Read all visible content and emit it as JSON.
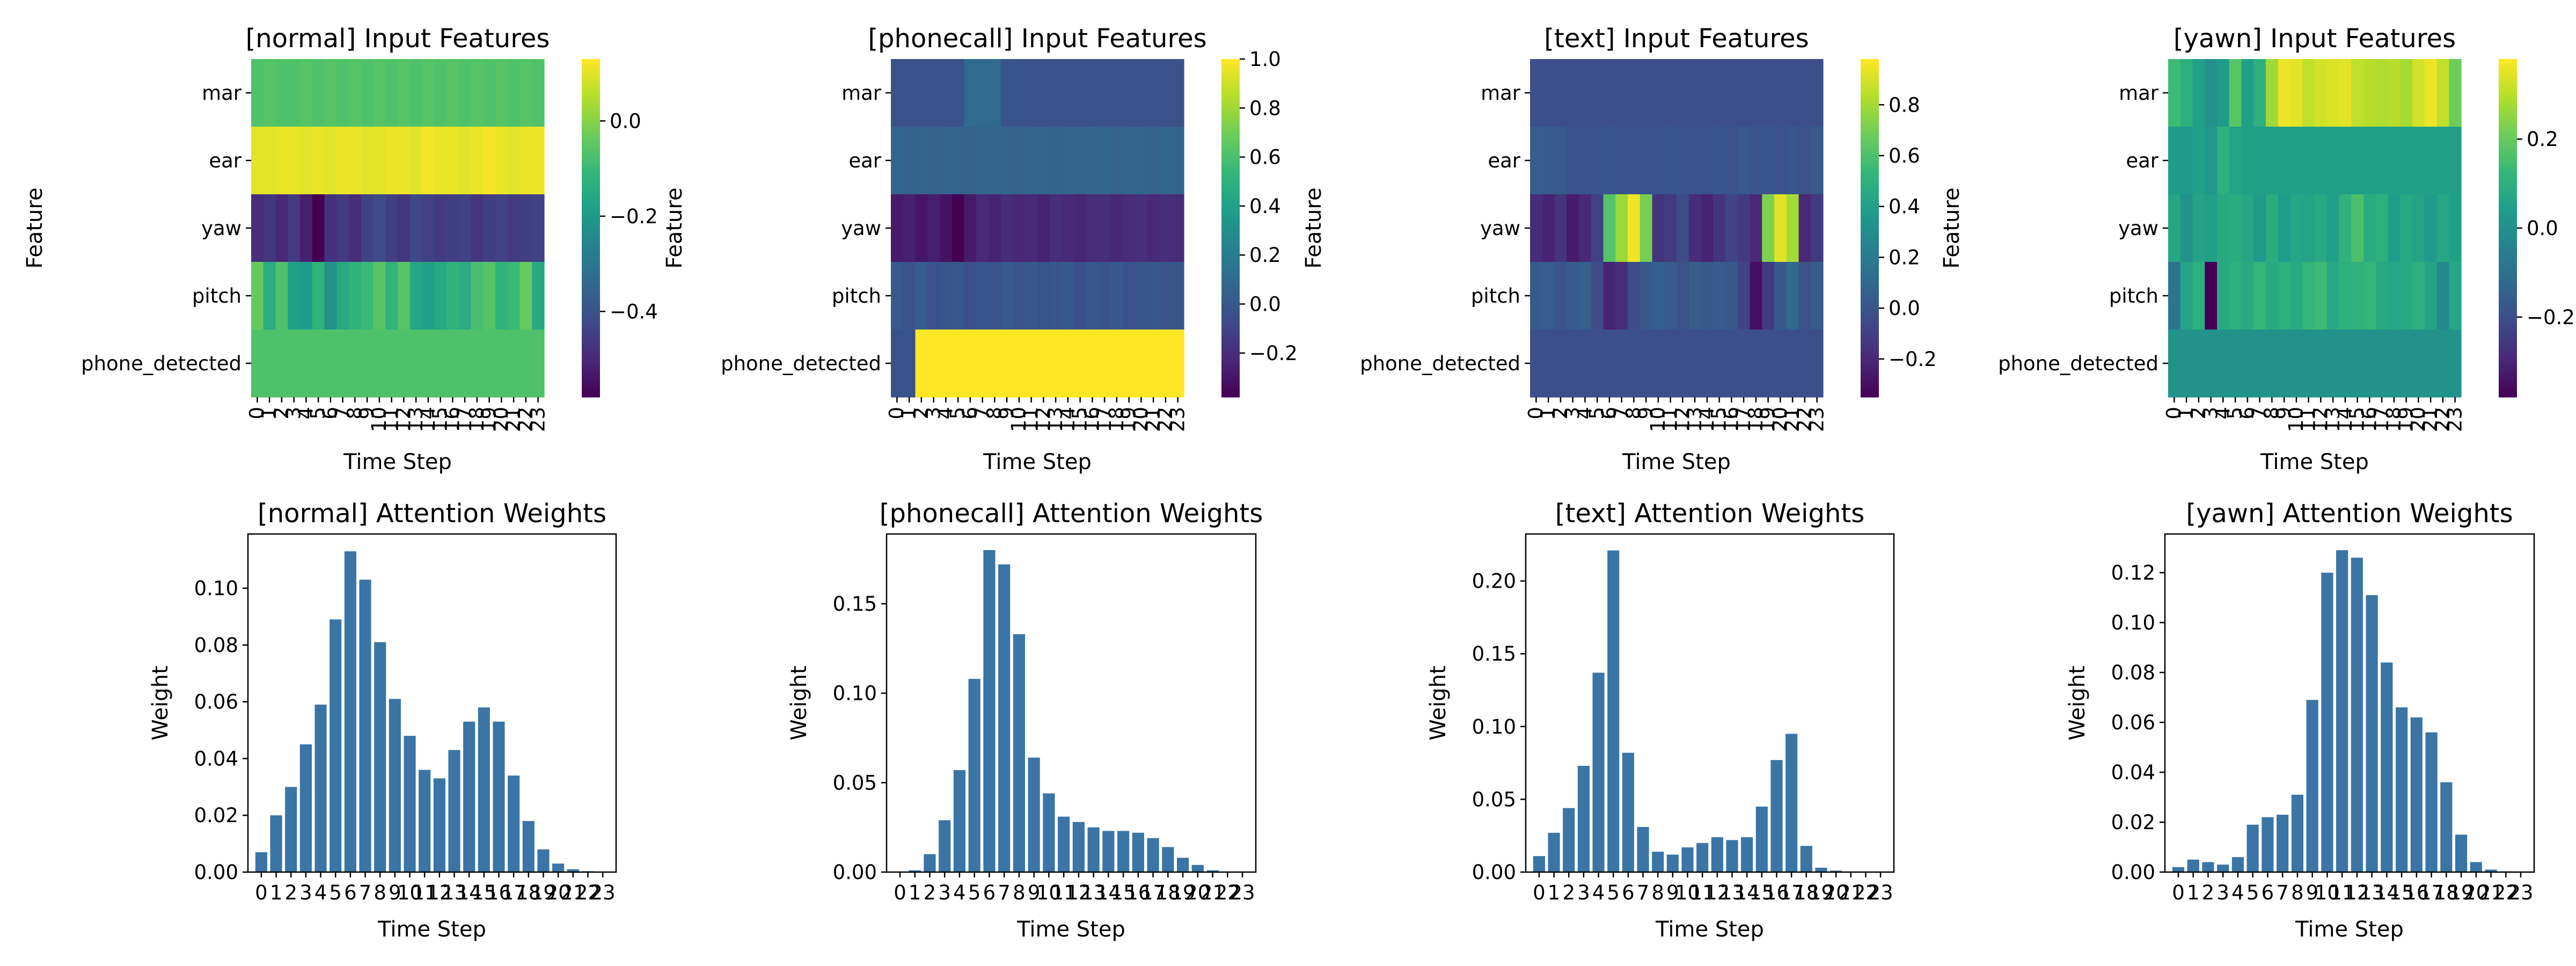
{
  "features": [
    "mar",
    "ear",
    "yaw",
    "pitch",
    "phone_detected"
  ],
  "chart_data": [
    {
      "type": "heatmap",
      "title": "[normal] Input Features",
      "xlabel": "Time Step",
      "ylabel": "Feature",
      "x": [
        0,
        1,
        2,
        3,
        4,
        5,
        6,
        7,
        8,
        9,
        10,
        11,
        12,
        13,
        14,
        15,
        16,
        17,
        18,
        19,
        20,
        21,
        22,
        23
      ],
      "y": [
        "mar",
        "ear",
        "yaw",
        "pitch",
        "phone_detected"
      ],
      "colormap": "viridis",
      "vmin": -0.58,
      "vmax": 0.13,
      "colorbar_ticks": [
        0.0,
        -0.2,
        -0.4
      ],
      "colorbar_tick_labels": [
        "0.0",
        "−0.2",
        "−0.4"
      ],
      "values": [
        [
          -0.07,
          -0.06,
          -0.07,
          -0.07,
          -0.06,
          -0.07,
          -0.06,
          -0.07,
          -0.06,
          -0.07,
          -0.06,
          -0.07,
          -0.06,
          -0.07,
          -0.06,
          -0.07,
          -0.06,
          -0.07,
          -0.06,
          -0.07,
          -0.06,
          -0.07,
          -0.06,
          -0.07
        ],
        [
          0.1,
          0.1,
          0.11,
          0.11,
          0.1,
          0.11,
          0.1,
          0.11,
          0.11,
          0.1,
          0.1,
          0.11,
          0.11,
          0.1,
          0.12,
          0.11,
          0.11,
          0.1,
          0.11,
          0.12,
          0.11,
          0.1,
          0.11,
          0.11
        ],
        [
          -0.49,
          -0.47,
          -0.5,
          -0.46,
          -0.52,
          -0.58,
          -0.48,
          -0.46,
          -0.49,
          -0.44,
          -0.42,
          -0.45,
          -0.47,
          -0.43,
          -0.44,
          -0.46,
          -0.45,
          -0.44,
          -0.47,
          -0.45,
          -0.44,
          -0.46,
          -0.45,
          -0.44
        ],
        [
          -0.04,
          -0.14,
          -0.07,
          -0.18,
          -0.19,
          -0.12,
          -0.22,
          -0.15,
          -0.12,
          -0.1,
          -0.06,
          -0.12,
          -0.06,
          -0.16,
          -0.18,
          -0.15,
          -0.12,
          -0.14,
          -0.08,
          -0.06,
          -0.12,
          -0.1,
          -0.04,
          -0.15
        ],
        [
          -0.07,
          -0.07,
          -0.07,
          -0.07,
          -0.07,
          -0.07,
          -0.07,
          -0.07,
          -0.07,
          -0.07,
          -0.07,
          -0.07,
          -0.07,
          -0.07,
          -0.07,
          -0.07,
          -0.07,
          -0.07,
          -0.07,
          -0.07,
          -0.07,
          -0.07,
          -0.07,
          -0.07
        ]
      ]
    },
    {
      "type": "heatmap",
      "title": "[phonecall] Input Features",
      "xlabel": "Time Step",
      "ylabel": "Feature",
      "x": [
        0,
        1,
        2,
        3,
        4,
        5,
        6,
        7,
        8,
        9,
        10,
        11,
        12,
        13,
        14,
        15,
        16,
        17,
        18,
        19,
        20,
        21,
        22,
        23
      ],
      "y": [
        "mar",
        "ear",
        "yaw",
        "pitch",
        "phone_detected"
      ],
      "colormap": "viridis",
      "vmin": -0.38,
      "vmax": 1.0,
      "colorbar_ticks": [
        1.0,
        0.8,
        0.6,
        0.4,
        0.2,
        0.0,
        -0.2
      ],
      "colorbar_tick_labels": [
        "1.0",
        "0.8",
        "0.6",
        "0.4",
        "0.2",
        "0.0",
        "−0.2"
      ],
      "values": [
        [
          -0.03,
          -0.03,
          -0.03,
          -0.03,
          -0.03,
          -0.03,
          0.09,
          0.09,
          0.09,
          -0.02,
          -0.03,
          -0.03,
          -0.03,
          -0.03,
          -0.03,
          -0.03,
          -0.03,
          -0.03,
          -0.03,
          -0.03,
          -0.03,
          -0.03,
          -0.03,
          -0.03
        ],
        [
          0.06,
          0.05,
          0.06,
          0.05,
          0.06,
          0.06,
          0.05,
          0.06,
          0.07,
          0.06,
          0.05,
          0.06,
          0.06,
          0.05,
          0.06,
          0.06,
          0.07,
          0.06,
          0.05,
          0.06,
          0.06,
          0.05,
          0.06,
          0.06
        ],
        [
          -0.28,
          -0.26,
          -0.3,
          -0.27,
          -0.31,
          -0.38,
          -0.28,
          -0.22,
          -0.25,
          -0.21,
          -0.23,
          -0.22,
          -0.25,
          -0.2,
          -0.22,
          -0.24,
          -0.21,
          -0.2,
          -0.23,
          -0.21,
          -0.19,
          -0.22,
          -0.2,
          -0.21
        ],
        [
          0.01,
          -0.03,
          0.02,
          -0.04,
          -0.01,
          0.0,
          -0.05,
          -0.02,
          -0.03,
          0.01,
          -0.02,
          0.0,
          -0.03,
          -0.01,
          0.01,
          -0.04,
          0.0,
          -0.02,
          0.01,
          -0.03,
          -0.01,
          0.0,
          -0.02,
          -0.01
        ],
        [
          -0.03,
          -0.03,
          1.0,
          1.0,
          1.0,
          1.0,
          1.0,
          1.0,
          1.0,
          1.0,
          1.0,
          1.0,
          1.0,
          1.0,
          1.0,
          1.0,
          1.0,
          1.0,
          1.0,
          1.0,
          1.0,
          1.0,
          1.0,
          1.0
        ]
      ]
    },
    {
      "type": "heatmap",
      "title": "[text] Input Features",
      "xlabel": "Time Step",
      "ylabel": "Feature",
      "x": [
        0,
        1,
        2,
        3,
        4,
        5,
        6,
        7,
        8,
        9,
        10,
        11,
        12,
        13,
        14,
        15,
        16,
        17,
        18,
        19,
        20,
        21,
        22,
        23
      ],
      "y": [
        "mar",
        "ear",
        "yaw",
        "pitch",
        "phone_detected"
      ],
      "colormap": "viridis",
      "vmin": -0.35,
      "vmax": 0.98,
      "colorbar_ticks": [
        0.8,
        0.6,
        0.4,
        0.2,
        0.0,
        -0.2
      ],
      "colorbar_tick_labels": [
        "0.8",
        "0.6",
        "0.4",
        "0.2",
        "0.0",
        "−0.2"
      ],
      "values": [
        [
          -0.03,
          -0.03,
          -0.03,
          -0.03,
          -0.03,
          -0.03,
          -0.03,
          -0.03,
          -0.03,
          -0.03,
          -0.03,
          -0.03,
          -0.03,
          -0.03,
          -0.03,
          -0.03,
          -0.03,
          -0.03,
          -0.03,
          -0.03,
          -0.03,
          -0.03,
          -0.03,
          -0.03
        ],
        [
          0.04,
          0.03,
          0.02,
          -0.01,
          -0.01,
          -0.01,
          0.0,
          -0.01,
          -0.01,
          -0.01,
          -0.01,
          0.0,
          -0.01,
          -0.01,
          -0.01,
          0.0,
          -0.01,
          0.02,
          0.0,
          0.0,
          -0.01,
          0.01,
          -0.01,
          0.02
        ],
        [
          -0.18,
          -0.22,
          -0.15,
          -0.25,
          -0.2,
          -0.1,
          0.62,
          0.78,
          0.95,
          0.7,
          -0.15,
          -0.12,
          -0.05,
          -0.18,
          -0.22,
          -0.15,
          -0.08,
          -0.12,
          -0.2,
          0.72,
          0.92,
          0.8,
          -0.2,
          -0.12
        ],
        [
          0.02,
          0.04,
          0.0,
          0.03,
          0.05,
          -0.05,
          -0.22,
          -0.18,
          -0.05,
          0.02,
          0.05,
          0.03,
          -0.02,
          0.04,
          0.02,
          0.03,
          0.01,
          -0.08,
          -0.3,
          -0.12,
          0.02,
          0.1,
          -0.02,
          0.03
        ],
        [
          -0.03,
          -0.03,
          -0.03,
          -0.03,
          -0.03,
          -0.03,
          -0.03,
          -0.03,
          -0.03,
          -0.03,
          -0.03,
          -0.03,
          -0.03,
          -0.03,
          -0.03,
          -0.03,
          -0.03,
          -0.03,
          -0.03,
          -0.03,
          -0.03,
          -0.03,
          -0.03,
          -0.03
        ]
      ]
    },
    {
      "type": "heatmap",
      "title": "[yawn] Input Features",
      "xlabel": "Time Step",
      "ylabel": "Feature",
      "x": [
        0,
        1,
        2,
        3,
        4,
        5,
        6,
        7,
        8,
        9,
        10,
        11,
        12,
        13,
        14,
        15,
        16,
        17,
        18,
        19,
        20,
        21,
        22,
        23
      ],
      "y": [
        "mar",
        "ear",
        "yaw",
        "pitch",
        "phone_detected"
      ],
      "colormap": "viridis",
      "vmin": -0.38,
      "vmax": 0.38,
      "colorbar_ticks": [
        0.2,
        0.0,
        -0.2
      ],
      "colorbar_tick_labels": [
        "0.2",
        "0.0",
        "−0.2"
      ],
      "values": [
        [
          0.14,
          0.1,
          0.05,
          0.0,
          0.03,
          0.18,
          0.05,
          0.1,
          0.27,
          0.36,
          0.35,
          0.31,
          0.33,
          0.34,
          0.35,
          0.31,
          0.3,
          0.29,
          0.3,
          0.28,
          0.33,
          0.36,
          0.31,
          0.21
        ],
        [
          0.04,
          0.03,
          0.05,
          0.02,
          0.1,
          0.06,
          0.05,
          0.05,
          0.05,
          0.05,
          0.05,
          0.05,
          0.05,
          0.05,
          0.05,
          0.05,
          0.05,
          0.05,
          0.05,
          0.05,
          0.05,
          0.05,
          0.05,
          0.05
        ],
        [
          0.07,
          0.01,
          0.06,
          0.05,
          0.08,
          0.09,
          0.07,
          0.03,
          0.09,
          0.04,
          0.07,
          0.06,
          0.08,
          0.05,
          0.11,
          0.16,
          0.09,
          0.1,
          0.04,
          0.08,
          0.06,
          0.03,
          0.07,
          0.05
        ],
        [
          -0.08,
          0.06,
          0.1,
          -0.38,
          0.08,
          0.1,
          0.08,
          0.12,
          0.08,
          0.1,
          0.08,
          0.12,
          0.14,
          0.08,
          0.1,
          0.11,
          0.12,
          0.08,
          0.07,
          0.08,
          0.1,
          0.06,
          -0.02,
          0.07
        ],
        [
          0.01,
          0.01,
          0.01,
          0.01,
          0.01,
          0.01,
          0.01,
          0.01,
          0.01,
          0.01,
          0.01,
          0.01,
          0.01,
          0.01,
          0.01,
          0.01,
          0.01,
          0.01,
          0.01,
          0.01,
          0.01,
          0.01,
          0.01,
          0.01
        ]
      ]
    },
    {
      "type": "bar",
      "title": "[normal] Attention Weights",
      "xlabel": "Time Step",
      "ylabel": "Weight",
      "categories": [
        "0",
        "1",
        "2",
        "3",
        "4",
        "5",
        "6",
        "7",
        "8",
        "9",
        "10",
        "11",
        "12",
        "13",
        "14",
        "15",
        "16",
        "17",
        "18",
        "19",
        "20",
        "21",
        "22",
        "23"
      ],
      "values": [
        0.007,
        0.02,
        0.03,
        0.045,
        0.059,
        0.089,
        0.113,
        0.103,
        0.081,
        0.061,
        0.048,
        0.036,
        0.033,
        0.043,
        0.053,
        0.058,
        0.053,
        0.034,
        0.018,
        0.008,
        0.003,
        0.001,
        0.0003,
        0.0001
      ],
      "ylim": [
        0,
        0.1191
      ],
      "yticks": [
        0.0,
        0.02,
        0.04,
        0.06,
        0.08,
        0.1
      ],
      "ytick_labels": [
        "0.00",
        "0.02",
        "0.04",
        "0.06",
        "0.08",
        "0.10"
      ],
      "color": "#3a75a6"
    },
    {
      "type": "bar",
      "title": "[phonecall] Attention Weights",
      "xlabel": "Time Step",
      "ylabel": "Weight",
      "categories": [
        "0",
        "1",
        "2",
        "3",
        "4",
        "5",
        "6",
        "7",
        "8",
        "9",
        "10",
        "11",
        "12",
        "13",
        "14",
        "15",
        "16",
        "17",
        "18",
        "19",
        "20",
        "21",
        "22",
        "23"
      ],
      "values": [
        0.0003,
        0.001,
        0.01,
        0.029,
        0.057,
        0.108,
        0.18,
        0.172,
        0.133,
        0.064,
        0.044,
        0.031,
        0.028,
        0.025,
        0.023,
        0.023,
        0.022,
        0.019,
        0.014,
        0.008,
        0.004,
        0.001,
        0.0003,
        0.0001
      ],
      "ylim": [
        0,
        0.189
      ],
      "yticks": [
        0.0,
        0.05,
        0.1,
        0.15
      ],
      "ytick_labels": [
        "0.00",
        "0.05",
        "0.10",
        "0.15"
      ],
      "color": "#3a75a6"
    },
    {
      "type": "bar",
      "title": "[text] Attention Weights",
      "xlabel": "Time Step",
      "ylabel": "Weight",
      "categories": [
        "0",
        "1",
        "2",
        "3",
        "4",
        "5",
        "6",
        "7",
        "8",
        "9",
        "10",
        "11",
        "12",
        "13",
        "14",
        "15",
        "16",
        "17",
        "18",
        "19",
        "20",
        "21",
        "22",
        "23"
      ],
      "values": [
        0.011,
        0.027,
        0.044,
        0.073,
        0.137,
        0.221,
        0.082,
        0.031,
        0.014,
        0.012,
        0.017,
        0.02,
        0.024,
        0.022,
        0.024,
        0.045,
        0.077,
        0.095,
        0.018,
        0.003,
        0.001,
        0.0003,
        0.0001,
        0.0001
      ],
      "ylim": [
        0,
        0.2323
      ],
      "yticks": [
        0.0,
        0.05,
        0.1,
        0.15,
        0.2
      ],
      "ytick_labels": [
        "0.00",
        "0.05",
        "0.10",
        "0.15",
        "0.20"
      ],
      "color": "#3a75a6"
    },
    {
      "type": "bar",
      "title": "[yawn] Attention Weights",
      "xlabel": "Time Step",
      "ylabel": "Weight",
      "categories": [
        "0",
        "1",
        "2",
        "3",
        "4",
        "5",
        "6",
        "7",
        "8",
        "9",
        "10",
        "11",
        "12",
        "13",
        "14",
        "15",
        "16",
        "17",
        "18",
        "19",
        "20",
        "21",
        "22",
        "23"
      ],
      "values": [
        0.002,
        0.005,
        0.004,
        0.003,
        0.006,
        0.019,
        0.022,
        0.023,
        0.031,
        0.069,
        0.12,
        0.129,
        0.126,
        0.111,
        0.084,
        0.066,
        0.062,
        0.056,
        0.036,
        0.015,
        0.004,
        0.001,
        0.0003,
        0.0001
      ],
      "ylim": [
        0,
        0.1355
      ],
      "yticks": [
        0.0,
        0.02,
        0.04,
        0.06,
        0.08,
        0.1,
        0.12
      ],
      "ytick_labels": [
        "0.00",
        "0.02",
        "0.04",
        "0.06",
        "0.08",
        "0.10",
        "0.12"
      ],
      "color": "#3a75a6"
    }
  ]
}
